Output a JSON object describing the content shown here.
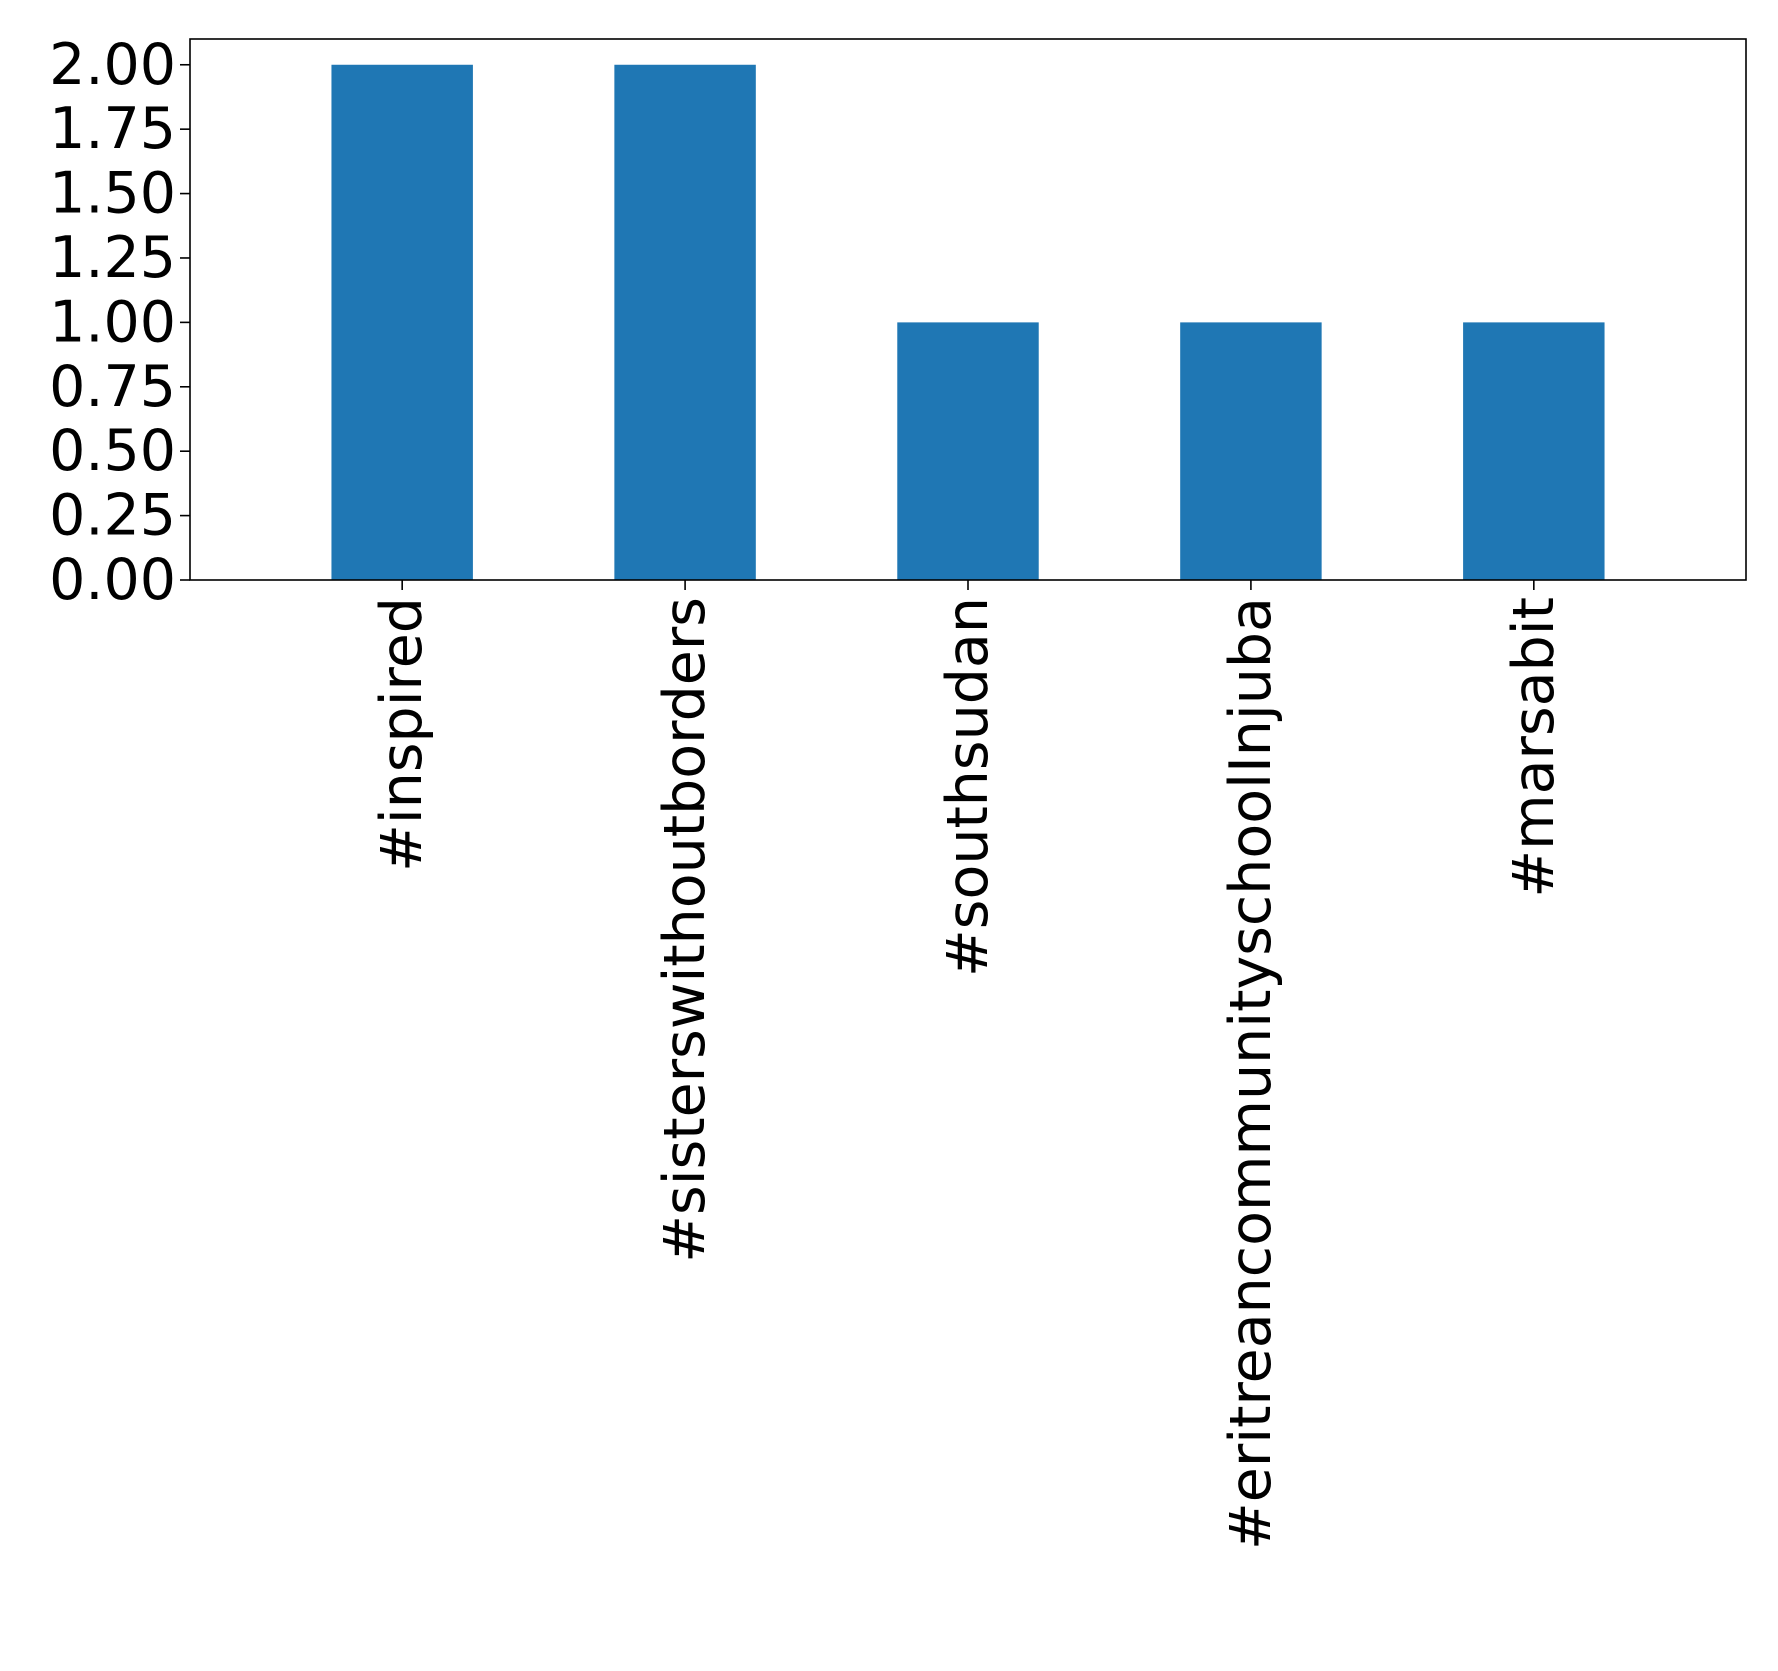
{
  "chart_data": {
    "type": "bar",
    "categories": [
      "#inspired",
      "#sisterswithoutborders",
      "#southsudan",
      "#eritreancommunityschoolInjuba",
      "#marsabit"
    ],
    "values": [
      2,
      2,
      1,
      1,
      1
    ],
    "title": "",
    "xlabel": "",
    "ylabel": "",
    "ylim": [
      0,
      2.1
    ],
    "yticks": [
      "0.00",
      "0.25",
      "0.50",
      "0.75",
      "1.00",
      "1.25",
      "1.50",
      "1.75",
      "2.00"
    ],
    "bar_color": "#1f77b4",
    "grid": false,
    "legend": "none"
  }
}
